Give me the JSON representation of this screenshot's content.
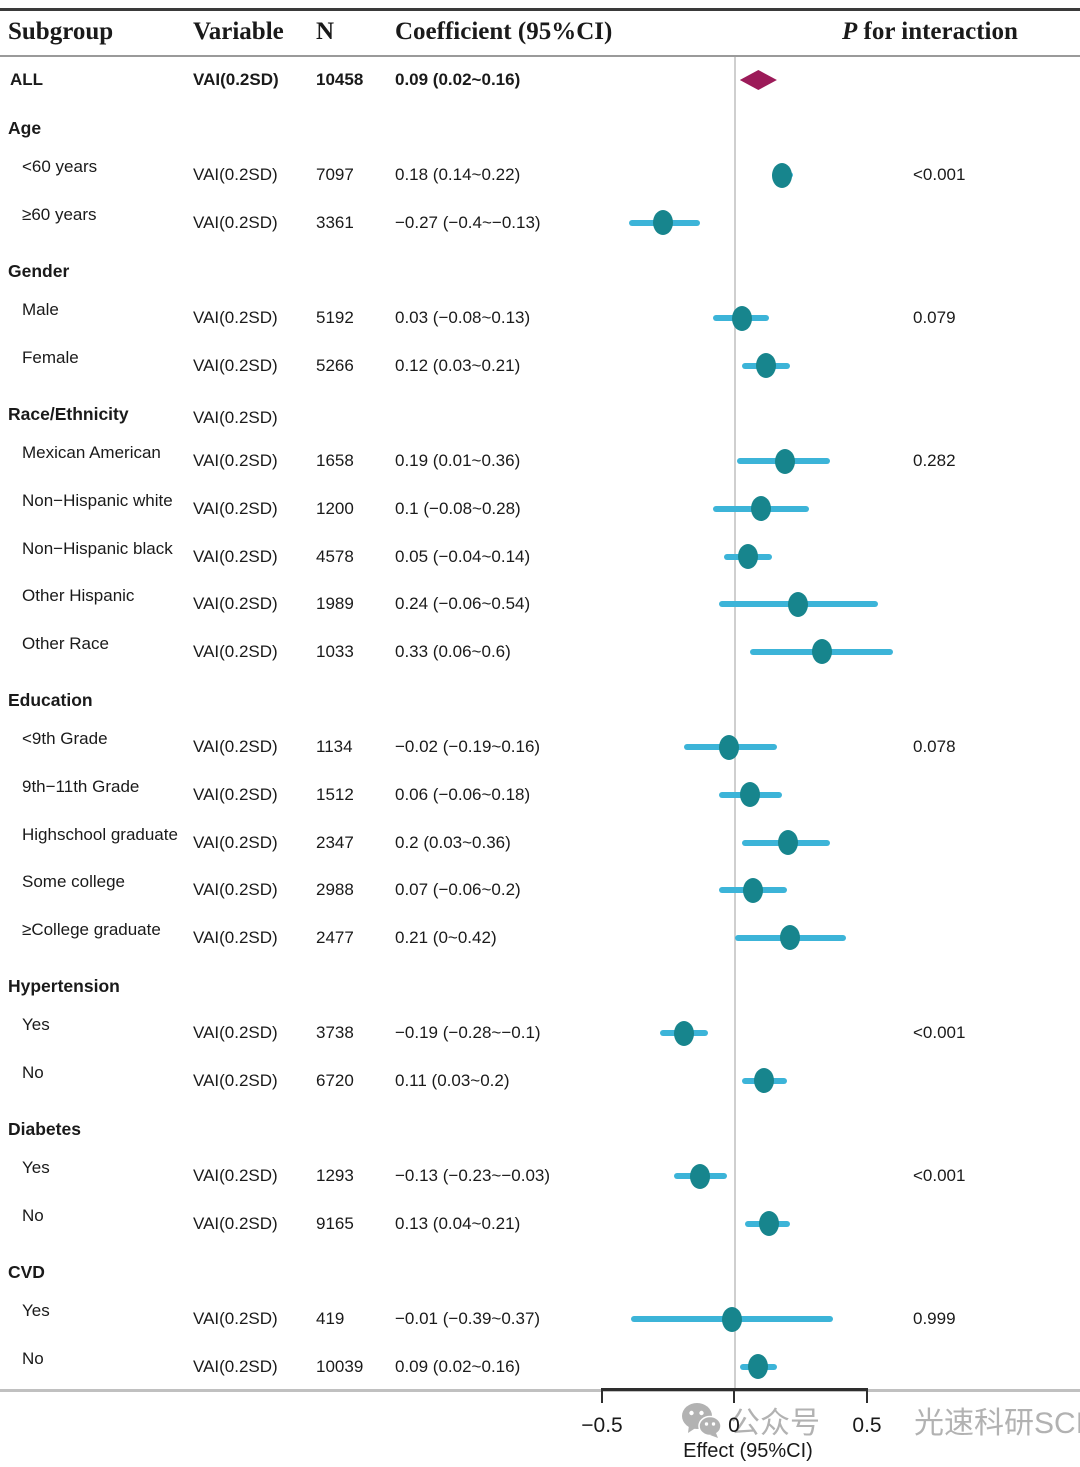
{
  "header": {
    "subgroup": "Subgroup",
    "variable": "Variable",
    "n": "N",
    "coefficient": "Coefficient (95%CI)",
    "p_italic": "P",
    "p_rest": " for interaction"
  },
  "axis": {
    "label": "Effect (95%CI)",
    "min": -0.5,
    "max": 0.5,
    "tick_values": [
      -0.5,
      0,
      0.5
    ],
    "tick_labels": [
      "−0.5",
      "0",
      "0.5"
    ]
  },
  "watermark": {
    "icon": "wechat-icon",
    "text1": "公众号",
    "text2": "光速科研SCI"
  },
  "colors": {
    "point": "#17858d",
    "ci_line": "#3cb4d8",
    "diamond": "#9c1b59",
    "ref_line": "#cfcfcf",
    "rule_dark": "#3a3a3a",
    "rule_mid": "#9a9a9a",
    "rule_light": "#c0c0c0",
    "text": "#1a1a1a",
    "watermark": "#b2b2b2"
  },
  "chart_data": {
    "type": "forest",
    "title": "",
    "xlabel": "Effect (95%CI)",
    "xlim": [
      -0.5,
      0.5
    ],
    "reference_value": 0,
    "rows": [
      {
        "kind": "data",
        "subgroup": "ALL",
        "variable": "VAI(0.2SD)",
        "n": "10458",
        "coefficient": "0.09 (0.02~0.16)",
        "estimate": 0.09,
        "lo": 0.02,
        "hi": 0.16,
        "p": "",
        "marker": "diamond",
        "bold": true
      },
      {
        "kind": "section",
        "subgroup": "Age"
      },
      {
        "kind": "data",
        "subgroup": "<60 years",
        "variable": "VAI(0.2SD)",
        "n": "7097",
        "coefficient": "0.18 (0.14~0.22)",
        "estimate": 0.18,
        "lo": 0.14,
        "hi": 0.22,
        "p": "<0.001",
        "marker": "circle"
      },
      {
        "kind": "data",
        "subgroup": "≥60 years",
        "variable": "VAI(0.2SD)",
        "n": "3361",
        "coefficient": "−0.27 (−0.4~−0.13)",
        "estimate": -0.27,
        "lo": -0.4,
        "hi": -0.13,
        "p": "",
        "marker": "circle"
      },
      {
        "kind": "section",
        "subgroup": "Gender"
      },
      {
        "kind": "data",
        "subgroup": "Male",
        "variable": "VAI(0.2SD)",
        "n": "5192",
        "coefficient": "0.03 (−0.08~0.13)",
        "estimate": 0.03,
        "lo": -0.08,
        "hi": 0.13,
        "p": "0.079",
        "marker": "circle"
      },
      {
        "kind": "data",
        "subgroup": "Female",
        "variable": "VAI(0.2SD)",
        "n": "5266",
        "coefficient": "0.12 (0.03~0.21)",
        "estimate": 0.12,
        "lo": 0.03,
        "hi": 0.21,
        "p": "",
        "marker": "circle"
      },
      {
        "kind": "section",
        "subgroup": "Race/Ethnicity",
        "variable": "VAI(0.2SD)"
      },
      {
        "kind": "data",
        "subgroup": "Mexican American",
        "variable": "VAI(0.2SD)",
        "n": "1658",
        "coefficient": "0.19 (0.01~0.36)",
        "estimate": 0.19,
        "lo": 0.01,
        "hi": 0.36,
        "p": "0.282",
        "marker": "circle"
      },
      {
        "kind": "data",
        "subgroup": "Non−Hispanic white",
        "variable": "VAI(0.2SD)",
        "n": "1200",
        "coefficient": "0.1 (−0.08~0.28)",
        "estimate": 0.1,
        "lo": -0.08,
        "hi": 0.28,
        "p": "",
        "marker": "circle"
      },
      {
        "kind": "data",
        "subgroup": "Non−Hispanic black",
        "variable": "VAI(0.2SD)",
        "n": "4578",
        "coefficient": "0.05 (−0.04~0.14)",
        "estimate": 0.05,
        "lo": -0.04,
        "hi": 0.14,
        "p": "",
        "marker": "circle"
      },
      {
        "kind": "data",
        "subgroup": "Other Hispanic",
        "variable": "VAI(0.2SD)",
        "n": "1989",
        "coefficient": "0.24 (−0.06~0.54)",
        "estimate": 0.24,
        "lo": -0.06,
        "hi": 0.54,
        "p": "",
        "marker": "circle"
      },
      {
        "kind": "data",
        "subgroup": "Other Race",
        "variable": "VAI(0.2SD)",
        "n": "1033",
        "coefficient": "0.33 (0.06~0.6)",
        "estimate": 0.33,
        "lo": 0.06,
        "hi": 0.6,
        "p": "",
        "marker": "circle"
      },
      {
        "kind": "section",
        "subgroup": "Education"
      },
      {
        "kind": "data",
        "subgroup": "<9th Grade",
        "variable": "VAI(0.2SD)",
        "n": "1134",
        "coefficient": "−0.02 (−0.19~0.16)",
        "estimate": -0.02,
        "lo": -0.19,
        "hi": 0.16,
        "p": "0.078",
        "marker": "circle"
      },
      {
        "kind": "data",
        "subgroup": "9th−11th Grade",
        "variable": "VAI(0.2SD)",
        "n": "1512",
        "coefficient": "0.06 (−0.06~0.18)",
        "estimate": 0.06,
        "lo": -0.06,
        "hi": 0.18,
        "p": "",
        "marker": "circle"
      },
      {
        "kind": "data",
        "subgroup": "Highschool graduate",
        "variable": "VAI(0.2SD)",
        "n": "2347",
        "coefficient": "0.2 (0.03~0.36)",
        "estimate": 0.2,
        "lo": 0.03,
        "hi": 0.36,
        "p": "",
        "marker": "circle"
      },
      {
        "kind": "data",
        "subgroup": "Some college",
        "variable": "VAI(0.2SD)",
        "n": "2988",
        "coefficient": "0.07 (−0.06~0.2)",
        "estimate": 0.07,
        "lo": -0.06,
        "hi": 0.2,
        "p": "",
        "marker": "circle"
      },
      {
        "kind": "data",
        "subgroup": "≥College graduate",
        "variable": "VAI(0.2SD)",
        "n": "2477",
        "coefficient": "0.21 (0~0.42)",
        "estimate": 0.21,
        "lo": 0,
        "hi": 0.42,
        "p": "",
        "marker": "circle"
      },
      {
        "kind": "section",
        "subgroup": "Hypertension"
      },
      {
        "kind": "data",
        "subgroup": "Yes",
        "variable": "VAI(0.2SD)",
        "n": "3738",
        "coefficient": "−0.19 (−0.28~−0.1)",
        "estimate": -0.19,
        "lo": -0.28,
        "hi": -0.1,
        "p": "<0.001",
        "marker": "circle"
      },
      {
        "kind": "data",
        "subgroup": "No",
        "variable": "VAI(0.2SD)",
        "n": "6720",
        "coefficient": "0.11 (0.03~0.2)",
        "estimate": 0.11,
        "lo": 0.03,
        "hi": 0.2,
        "p": "",
        "marker": "circle"
      },
      {
        "kind": "section",
        "subgroup": "Diabetes"
      },
      {
        "kind": "data",
        "subgroup": "Yes",
        "variable": "VAI(0.2SD)",
        "n": "1293",
        "coefficient": "−0.13 (−0.23~−0.03)",
        "estimate": -0.13,
        "lo": -0.23,
        "hi": -0.03,
        "p": "<0.001",
        "marker": "circle"
      },
      {
        "kind": "data",
        "subgroup": "No",
        "variable": "VAI(0.2SD)",
        "n": "9165",
        "coefficient": "0.13 (0.04~0.21)",
        "estimate": 0.13,
        "lo": 0.04,
        "hi": 0.21,
        "p": "",
        "marker": "circle"
      },
      {
        "kind": "section",
        "subgroup": "CVD"
      },
      {
        "kind": "data",
        "subgroup": "Yes",
        "variable": "VAI(0.2SD)",
        "n": "419",
        "coefficient": "−0.01 (−0.39~0.37)",
        "estimate": -0.01,
        "lo": -0.39,
        "hi": 0.37,
        "p": "0.999",
        "marker": "circle"
      },
      {
        "kind": "data",
        "subgroup": "No",
        "variable": "VAI(0.2SD)",
        "n": "10039",
        "coefficient": "0.09 (0.02~0.16)",
        "estimate": 0.09,
        "lo": 0.02,
        "hi": 0.16,
        "p": "",
        "marker": "circle"
      }
    ]
  }
}
